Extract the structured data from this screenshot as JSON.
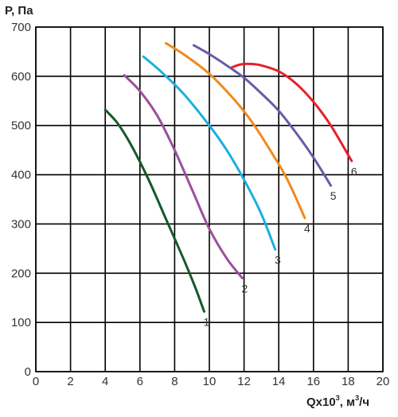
{
  "chart_data": {
    "type": "line",
    "xlabel_main": "Qx10",
    "xlabel_sup": "3",
    "xlabel_unit_a": ", м",
    "xlabel_unit_sup": "3",
    "xlabel_unit_b": "/ч",
    "ylabel": "P, Па",
    "xlim": [
      0,
      20
    ],
    "ylim": [
      0,
      700
    ],
    "xticks": [
      0,
      2,
      4,
      6,
      8,
      10,
      12,
      14,
      16,
      18,
      20
    ],
    "yticks": [
      0,
      100,
      200,
      300,
      400,
      500,
      600,
      700
    ],
    "grid": true,
    "series": [
      {
        "label": "1",
        "color": "#145a2a",
        "points": [
          [
            4.0,
            532
          ],
          [
            4.7,
            505
          ],
          [
            5.5,
            460
          ],
          [
            6.5,
            390
          ],
          [
            7.5,
            310
          ],
          [
            8.5,
            230
          ],
          [
            9.2,
            170
          ],
          [
            9.7,
            122
          ]
        ]
      },
      {
        "label": "2",
        "color": "#9b4f9c",
        "points": [
          [
            5.1,
            602
          ],
          [
            6.0,
            570
          ],
          [
            7.0,
            520
          ],
          [
            8.0,
            450
          ],
          [
            9.0,
            370
          ],
          [
            10.0,
            290
          ],
          [
            11.0,
            230
          ],
          [
            11.9,
            190
          ]
        ]
      },
      {
        "label": "3",
        "color": "#1ab0e0",
        "points": [
          [
            6.2,
            640
          ],
          [
            7.2,
            610
          ],
          [
            8.5,
            565
          ],
          [
            10.0,
            500
          ],
          [
            11.0,
            450
          ],
          [
            12.0,
            390
          ],
          [
            13.0,
            320
          ],
          [
            13.8,
            248
          ]
        ]
      },
      {
        "label": "4",
        "color": "#f08a1c",
        "points": [
          [
            7.5,
            667
          ],
          [
            8.5,
            645
          ],
          [
            10.0,
            605
          ],
          [
            11.5,
            550
          ],
          [
            12.5,
            505
          ],
          [
            13.5,
            450
          ],
          [
            14.5,
            390
          ],
          [
            15.5,
            312
          ]
        ]
      },
      {
        "label": "5",
        "color": "#6b5aa8",
        "points": [
          [
            9.1,
            663
          ],
          [
            10.0,
            645
          ],
          [
            11.0,
            622
          ],
          [
            12.0,
            597
          ],
          [
            13.0,
            565
          ],
          [
            14.0,
            530
          ],
          [
            15.0,
            485
          ],
          [
            16.0,
            435
          ],
          [
            17.0,
            378
          ]
        ]
      },
      {
        "label": "6",
        "color": "#e8202a",
        "points": [
          [
            11.3,
            618
          ],
          [
            11.8,
            624
          ],
          [
            12.4,
            625
          ],
          [
            13.0,
            622
          ],
          [
            14.0,
            610
          ],
          [
            15.0,
            585
          ],
          [
            16.0,
            548
          ],
          [
            17.0,
            500
          ],
          [
            18.2,
            428
          ]
        ]
      }
    ]
  }
}
